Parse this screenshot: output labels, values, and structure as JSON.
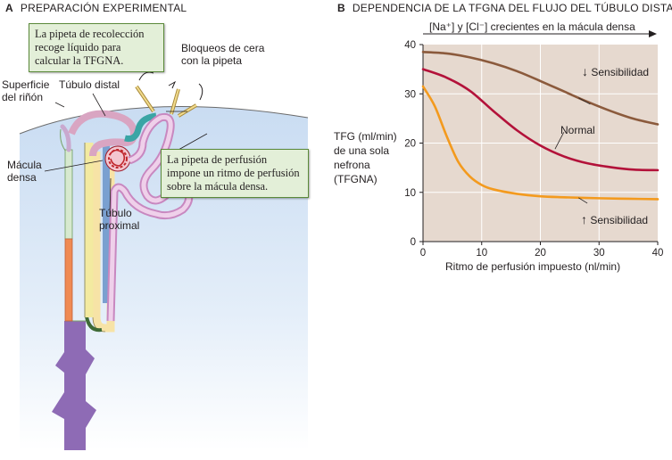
{
  "panel_a": {
    "letter": "A",
    "title": "PREPARACIÓN EXPERIMENTAL",
    "callout_collection": "La pipeta de recolección recoge líquido para calcular la TFGNA.",
    "callout_collection_lines": [
      "La pipeta de recolección",
      "recoge líquido para",
      "calcular la TFGNA."
    ],
    "callout_perfusion_lines": [
      "La pipeta de perfusión",
      "impone un ritmo de perfusión",
      "sobre la mácula densa."
    ],
    "label_wax": [
      "Bloqueos de cera",
      "con la pipeta"
    ],
    "label_surface": [
      "Superficie",
      "del riñón"
    ],
    "label_distal": "Túbulo distal",
    "label_macula": [
      "Mácula",
      "densa"
    ],
    "label_proximal": [
      "Túbulo",
      "proximal"
    ]
  },
  "panel_b": {
    "letter": "B",
    "title": "DEPENDENCIA DE LA TFGNA DEL FLUJO DEL TÚBULO DISTAL",
    "arrow_label": "[Na⁺] y [Cl⁻] crecientes en la mácula densa",
    "ylabel_lines": [
      "TFG (ml/min)",
      "de una sola",
      "nefrona",
      "(TFGNA)"
    ],
    "xlabel": "Ritmo de perfusión impuesto (nl/min)",
    "curve_labels": {
      "decreased": "Sensibilidad",
      "normal": "Normal",
      "increased": "Sensibilidad",
      "decreased_arrow": "↓",
      "increased_arrow": "↑"
    }
  },
  "chart_data": {
    "type": "line",
    "title": "DEPENDENCIA DE LA TFGNA DEL FLUJO DEL TÚBULO DISTAL",
    "xlabel": "Ritmo de perfusión impuesto (nl/min)",
    "ylabel": "TFG (ml/min) de una sola nefrona (TFGNA)",
    "xlim": [
      0,
      40
    ],
    "ylim": [
      0,
      40
    ],
    "xticks": [
      0,
      10,
      20,
      30,
      40
    ],
    "yticks": [
      0,
      10,
      20,
      30,
      40
    ],
    "grid": true,
    "background": "#e6d9cf",
    "series": [
      {
        "name": "↓ Sensibilidad",
        "color": "#8b5a3c",
        "x": [
          0,
          4,
          8,
          12,
          16,
          20,
          24,
          28,
          32,
          36,
          40
        ],
        "y": [
          38.5,
          38.2,
          37.4,
          36.2,
          34.6,
          32.6,
          30.5,
          28.4,
          26.5,
          24.9,
          23.8
        ]
      },
      {
        "name": "Normal",
        "color": "#b3123a",
        "x": [
          0,
          4,
          8,
          12,
          16,
          20,
          24,
          28,
          32,
          36,
          40
        ],
        "y": [
          35,
          33.3,
          30.6,
          26.5,
          22.6,
          19.5,
          17.3,
          15.9,
          15.1,
          14.6,
          14.5
        ]
      },
      {
        "name": "↑ Sensibilidad",
        "color": "#f39a1e",
        "x": [
          0,
          2,
          4,
          6,
          8,
          10,
          12,
          16,
          20,
          24,
          30,
          35,
          40
        ],
        "y": [
          31.5,
          27.5,
          21.5,
          16.2,
          13.2,
          11.5,
          10.6,
          9.7,
          9.2,
          9.0,
          8.8,
          8.7,
          8.6
        ]
      }
    ]
  },
  "colors": {
    "kidney_blue": "#cfe0f3",
    "collecting_duct": "#8e6bb5",
    "proximal_tubule": "#d9a5d0",
    "distal_tubule": "#3aa5a5",
    "glomerulus": "#c0272d",
    "callout_fill": "#e3efd8"
  }
}
